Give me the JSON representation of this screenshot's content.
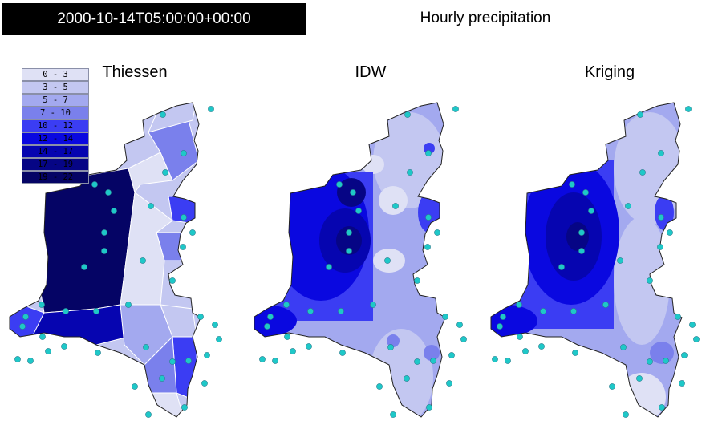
{
  "timestamp": "2000-10-14T05:00:00+00:00",
  "title": "Hourly precipitation",
  "panels": [
    {
      "id": "thiessen",
      "title": "Thiessen"
    },
    {
      "id": "idw",
      "title": "IDW"
    },
    {
      "id": "kriging",
      "title": "Kriging"
    }
  ],
  "legend": [
    {
      "label": "0 - 3",
      "color": "#dfe1f5",
      "text_color": "#000000"
    },
    {
      "label": "3 - 5",
      "color": "#c3c7f1",
      "text_color": "#000000"
    },
    {
      "label": "5 - 7",
      "color": "#a3a9ef",
      "text_color": "#000000"
    },
    {
      "label": "7 - 10",
      "color": "#7a80ec",
      "text_color": "#000000"
    },
    {
      "label": "10 - 12",
      "color": "#3b3df3",
      "text_color": "#000000"
    },
    {
      "label": "12 - 14",
      "color": "#0a08e0",
      "text_color": "#000000"
    },
    {
      "label": "14 - 17",
      "color": "#0605b0",
      "text_color": "#000000"
    },
    {
      "label": "17 - 19",
      "color": "#060585",
      "text_color": "#000000"
    },
    {
      "label": "19 - 22",
      "color": "#050465",
      "text_color": "#000000"
    }
  ],
  "station_color": "#1ec8c8"
}
